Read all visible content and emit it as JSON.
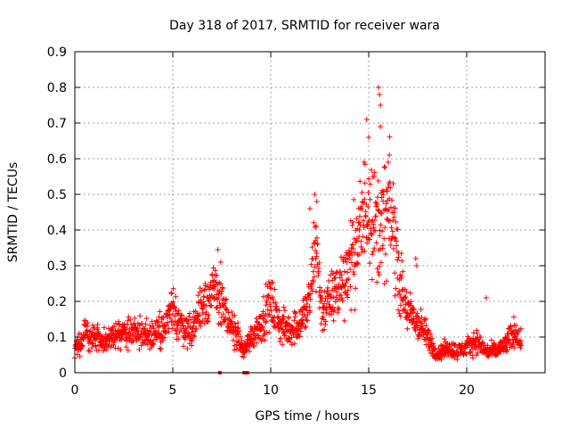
{
  "chart_data": {
    "type": "scatter",
    "title": "Day 318 of 2017, SRMTID for receiver wara",
    "xlabel": "GPS time / hours",
    "ylabel": "SRMTID / TECUs",
    "xlim": [
      0,
      24
    ],
    "ylim": [
      0,
      0.9
    ],
    "xticks": [
      0,
      5,
      10,
      15,
      20
    ],
    "xtick_labels": [
      "0",
      "5",
      "10",
      "15",
      "20"
    ],
    "yticks": [
      0,
      0.1,
      0.2,
      0.3,
      0.4,
      0.5,
      0.6,
      0.7,
      0.8,
      0.9
    ],
    "ytick_labels": [
      "0",
      "0.1",
      "0.2",
      "0.3",
      "0.4",
      "0.5",
      "0.6",
      "0.7",
      "0.8",
      "0.9"
    ],
    "grid": true,
    "series": [
      {
        "name": "SRMTID",
        "color": "#ff0000",
        "marker": "plus",
        "envelope": [
          [
            0.0,
            0.06
          ],
          [
            0.5,
            0.11
          ],
          [
            1.0,
            0.1
          ],
          [
            1.5,
            0.09
          ],
          [
            2.0,
            0.1
          ],
          [
            2.5,
            0.11
          ],
          [
            3.0,
            0.12
          ],
          [
            3.5,
            0.11
          ],
          [
            4.0,
            0.11
          ],
          [
            4.5,
            0.12
          ],
          [
            5.0,
            0.17
          ],
          [
            5.5,
            0.13
          ],
          [
            6.0,
            0.12
          ],
          [
            6.5,
            0.2
          ],
          [
            7.0,
            0.22
          ],
          [
            7.4,
            0.22
          ],
          [
            7.8,
            0.13
          ],
          [
            8.2,
            0.12
          ],
          [
            8.6,
            0.06
          ],
          [
            9.0,
            0.1
          ],
          [
            9.5,
            0.14
          ],
          [
            10.0,
            0.2
          ],
          [
            10.5,
            0.13
          ],
          [
            11.0,
            0.12
          ],
          [
            11.5,
            0.14
          ],
          [
            12.0,
            0.2
          ],
          [
            12.3,
            0.38
          ],
          [
            12.6,
            0.17
          ],
          [
            13.0,
            0.2
          ],
          [
            13.5,
            0.24
          ],
          [
            14.0,
            0.3
          ],
          [
            14.5,
            0.38
          ],
          [
            14.8,
            0.45
          ],
          [
            15.0,
            0.5
          ],
          [
            15.3,
            0.42
          ],
          [
            15.6,
            0.4
          ],
          [
            16.0,
            0.45
          ],
          [
            16.3,
            0.4
          ],
          [
            16.6,
            0.25
          ],
          [
            17.0,
            0.17
          ],
          [
            17.5,
            0.14
          ],
          [
            18.0,
            0.1
          ],
          [
            18.5,
            0.05
          ],
          [
            19.0,
            0.07
          ],
          [
            19.5,
            0.06
          ],
          [
            20.0,
            0.07
          ],
          [
            20.5,
            0.09
          ],
          [
            21.0,
            0.06
          ],
          [
            21.5,
            0.06
          ],
          [
            22.0,
            0.08
          ],
          [
            22.5,
            0.12
          ],
          [
            22.8,
            0.08
          ]
        ],
        "spread": 0.55,
        "peak_outliers": [
          [
            7.3,
            0.345
          ],
          [
            7.45,
            0.31
          ],
          [
            12.0,
            0.46
          ],
          [
            12.25,
            0.5
          ],
          [
            12.35,
            0.48
          ],
          [
            14.9,
            0.71
          ],
          [
            15.0,
            0.66
          ],
          [
            15.5,
            0.8
          ],
          [
            15.55,
            0.78
          ],
          [
            15.6,
            0.75
          ],
          [
            15.6,
            0.69
          ],
          [
            16.05,
            0.61
          ],
          [
            16.0,
            0.59
          ],
          [
            17.4,
            0.32
          ],
          [
            17.45,
            0.3
          ],
          [
            21.0,
            0.21
          ]
        ],
        "zero_points": [
          [
            7.4,
            0.0
          ],
          [
            8.65,
            0.0
          ],
          [
            8.8,
            0.0
          ]
        ]
      }
    ]
  }
}
